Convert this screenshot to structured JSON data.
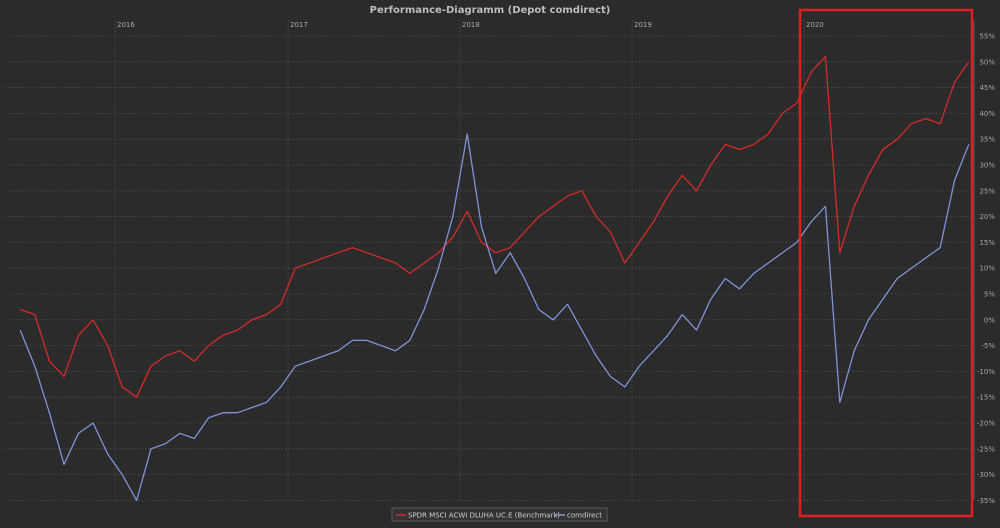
{
  "chart_data": {
    "type": "line",
    "title": "Performance-Diagramm (Depot comdirect)",
    "xlabel": "",
    "ylabel": "",
    "x_ticks": [
      "2016",
      "2017",
      "2018",
      "2019",
      "2020"
    ],
    "y_ticks": [
      "55%",
      "50%",
      "45%",
      "40%",
      "35%",
      "30%",
      "25%",
      "20%",
      "15%",
      "10%",
      "5%",
      "0%",
      "-5%",
      "-10%",
      "-15%",
      "-20%",
      "-25%",
      "-30%",
      "-35%"
    ],
    "ylim": [
      -37,
      57
    ],
    "grid": true,
    "legend_position": "bottom-center",
    "highlight_region": {
      "from": "2020-01-01",
      "to": "2020-12-31",
      "color": "#e02020"
    },
    "series": [
      {
        "name": "SPDR MSCI ACWI DLUHA UC.E (Benchmark)",
        "color": "#d42a2a",
        "points": [
          [
            "2015-06",
            2
          ],
          [
            "2015-07",
            1
          ],
          [
            "2015-08",
            -8
          ],
          [
            "2015-09",
            -11
          ],
          [
            "2015-10",
            -3
          ],
          [
            "2015-11",
            0
          ],
          [
            "2015-12",
            -5
          ],
          [
            "2016-01",
            -13
          ],
          [
            "2016-02",
            -15
          ],
          [
            "2016-03",
            -9
          ],
          [
            "2016-04",
            -7
          ],
          [
            "2016-05",
            -6
          ],
          [
            "2016-06",
            -8
          ],
          [
            "2016-07",
            -5
          ],
          [
            "2016-08",
            -3
          ],
          [
            "2016-09",
            -2
          ],
          [
            "2016-10",
            0
          ],
          [
            "2016-11",
            1
          ],
          [
            "2016-12",
            3
          ],
          [
            "2017-01",
            10
          ],
          [
            "2017-02",
            11
          ],
          [
            "2017-03",
            12
          ],
          [
            "2017-04",
            13
          ],
          [
            "2017-05",
            14
          ],
          [
            "2017-06",
            13
          ],
          [
            "2017-07",
            12
          ],
          [
            "2017-08",
            11
          ],
          [
            "2017-09",
            9
          ],
          [
            "2017-10",
            11
          ],
          [
            "2017-11",
            13
          ],
          [
            "2017-12",
            16
          ],
          [
            "2018-01",
            21
          ],
          [
            "2018-02",
            15
          ],
          [
            "2018-03",
            13
          ],
          [
            "2018-04",
            14
          ],
          [
            "2018-05",
            17
          ],
          [
            "2018-06",
            20
          ],
          [
            "2018-07",
            22
          ],
          [
            "2018-08",
            24
          ],
          [
            "2018-09",
            25
          ],
          [
            "2018-10",
            20
          ],
          [
            "2018-11",
            17
          ],
          [
            "2018-12",
            11
          ],
          [
            "2019-01",
            15
          ],
          [
            "2019-02",
            19
          ],
          [
            "2019-03",
            24
          ],
          [
            "2019-04",
            28
          ],
          [
            "2019-05",
            25
          ],
          [
            "2019-06",
            30
          ],
          [
            "2019-07",
            34
          ],
          [
            "2019-08",
            33
          ],
          [
            "2019-09",
            34
          ],
          [
            "2019-10",
            36
          ],
          [
            "2019-11",
            40
          ],
          [
            "2019-12",
            42
          ],
          [
            "2020-01",
            48
          ],
          [
            "2020-02",
            51
          ],
          [
            "2020-03",
            13
          ],
          [
            "2020-04",
            22
          ],
          [
            "2020-05",
            28
          ],
          [
            "2020-06",
            33
          ],
          [
            "2020-07",
            35
          ],
          [
            "2020-08",
            38
          ],
          [
            "2020-09",
            39
          ],
          [
            "2020-10",
            38
          ],
          [
            "2020-11",
            46
          ],
          [
            "2020-12",
            50
          ]
        ]
      },
      {
        "name": "comdirect",
        "color": "#7f93d6",
        "points": [
          [
            "2015-06",
            -2
          ],
          [
            "2015-07",
            -9
          ],
          [
            "2015-08",
            -18
          ],
          [
            "2015-09",
            -28
          ],
          [
            "2015-10",
            -22
          ],
          [
            "2015-11",
            -20
          ],
          [
            "2015-12",
            -26
          ],
          [
            "2016-01",
            -30
          ],
          [
            "2016-02",
            -35
          ],
          [
            "2016-03",
            -25
          ],
          [
            "2016-04",
            -24
          ],
          [
            "2016-05",
            -22
          ],
          [
            "2016-06",
            -23
          ],
          [
            "2016-07",
            -19
          ],
          [
            "2016-08",
            -18
          ],
          [
            "2016-09",
            -18
          ],
          [
            "2016-10",
            -17
          ],
          [
            "2016-11",
            -16
          ],
          [
            "2016-12",
            -13
          ],
          [
            "2017-01",
            -9
          ],
          [
            "2017-02",
            -8
          ],
          [
            "2017-03",
            -7
          ],
          [
            "2017-04",
            -6
          ],
          [
            "2017-05",
            -4
          ],
          [
            "2017-06",
            -4
          ],
          [
            "2017-07",
            -5
          ],
          [
            "2017-08",
            -6
          ],
          [
            "2017-09",
            -4
          ],
          [
            "2017-10",
            2
          ],
          [
            "2017-11",
            10
          ],
          [
            "2017-12",
            20
          ],
          [
            "2018-01",
            36
          ],
          [
            "2018-02",
            18
          ],
          [
            "2018-03",
            9
          ],
          [
            "2018-04",
            13
          ],
          [
            "2018-05",
            8
          ],
          [
            "2018-06",
            2
          ],
          [
            "2018-07",
            0
          ],
          [
            "2018-08",
            3
          ],
          [
            "2018-09",
            -2
          ],
          [
            "2018-10",
            -7
          ],
          [
            "2018-11",
            -11
          ],
          [
            "2018-12",
            -13
          ],
          [
            "2019-01",
            -9
          ],
          [
            "2019-02",
            -6
          ],
          [
            "2019-03",
            -3
          ],
          [
            "2019-04",
            1
          ],
          [
            "2019-05",
            -2
          ],
          [
            "2019-06",
            4
          ],
          [
            "2019-07",
            8
          ],
          [
            "2019-08",
            6
          ],
          [
            "2019-09",
            9
          ],
          [
            "2019-10",
            11
          ],
          [
            "2019-12",
            15
          ],
          [
            "2020-01",
            19
          ],
          [
            "2020-02",
            22
          ],
          [
            "2020-03",
            -16
          ],
          [
            "2020-04",
            -6
          ],
          [
            "2020-05",
            0
          ],
          [
            "2020-06",
            4
          ],
          [
            "2020-07",
            8
          ],
          [
            "2020-08",
            10
          ],
          [
            "2020-09",
            12
          ],
          [
            "2020-10",
            14
          ],
          [
            "2020-11",
            27
          ],
          [
            "2020-12",
            34
          ]
        ]
      }
    ]
  }
}
